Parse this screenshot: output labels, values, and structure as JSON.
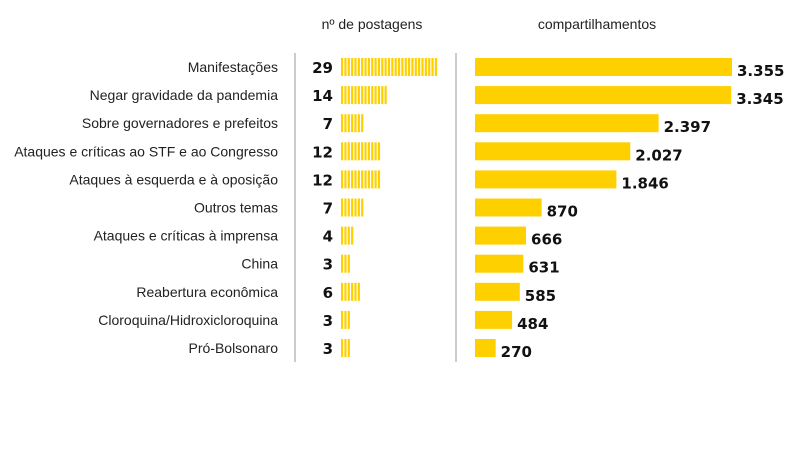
{
  "chart_data": {
    "type": "bar",
    "categories": [
      "Manifestações",
      "Negar gravidade da pandemia",
      "Sobre governadores e prefeitos",
      "Ataques e críticas ao STF e ao Congresso",
      "Ataques à esquerda e à oposição",
      "Outros temas",
      "Ataques e críticas à imprensa",
      "China",
      "Reabertura econômica",
      "Cloroquina/Hidroxicloroquina",
      "Pró-Bolsonaro"
    ],
    "series": [
      {
        "name": "nº de postagens",
        "values": [
          29,
          14,
          7,
          12,
          12,
          7,
          4,
          3,
          6,
          3,
          3
        ],
        "labels": [
          "29",
          "14",
          "7",
          "12",
          "12",
          "7",
          "4",
          "3",
          "6",
          "3",
          "3"
        ]
      },
      {
        "name": "compartilhamentos",
        "values": [
          3355,
          3345,
          2397,
          2027,
          1846,
          870,
          666,
          631,
          585,
          484,
          270
        ],
        "labels": [
          "3.355",
          "3.345",
          "2.397",
          "2.027",
          "1.846",
          "870",
          "666",
          "631",
          "585",
          "484",
          "270"
        ]
      }
    ],
    "headers": {
      "posts": "nº de postagens",
      "shares": "compartilhamentos"
    },
    "colors": {
      "bar": "#FFD000",
      "divider": "#9a9a9a",
      "text": "#222222"
    }
  }
}
